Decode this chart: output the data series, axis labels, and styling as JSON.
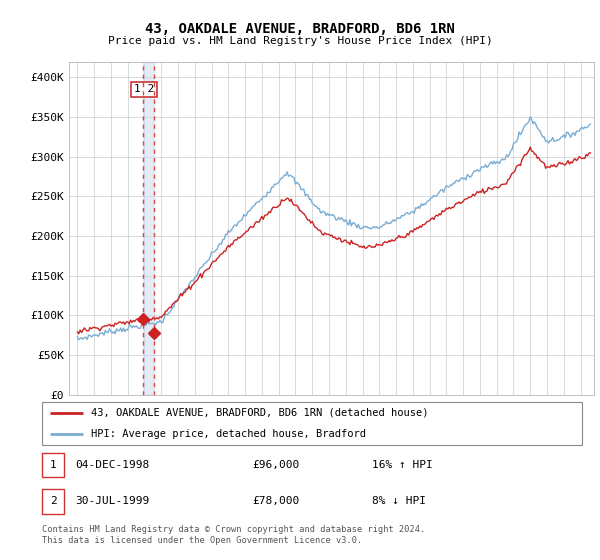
{
  "title": "43, OAKDALE AVENUE, BRADFORD, BD6 1RN",
  "subtitle": "Price paid vs. HM Land Registry's House Price Index (HPI)",
  "ylim": [
    0,
    420000
  ],
  "yticks": [
    0,
    50000,
    100000,
    150000,
    200000,
    250000,
    300000,
    350000,
    400000
  ],
  "ytick_labels": [
    "£0",
    "£50K",
    "£100K",
    "£150K",
    "£200K",
    "£250K",
    "£300K",
    "£350K",
    "£400K"
  ],
  "hpi_color": "#7aadd4",
  "price_color": "#cc2222",
  "dot_color": "#cc2222",
  "vline_color": "#dd4444",
  "shade_color": "#c8d8ee",
  "bg_color": "#ffffff",
  "grid_color": "#cccccc",
  "legend_label_price": "43, OAKDALE AVENUE, BRADFORD, BD6 1RN (detached house)",
  "legend_label_hpi": "HPI: Average price, detached house, Bradford",
  "transaction1_date": "04-DEC-1998",
  "transaction1_price": "£96,000",
  "transaction1_hpi": "16% ↑ HPI",
  "transaction2_date": "30-JUL-1999",
  "transaction2_price": "£78,000",
  "transaction2_hpi": "8% ↓ HPI",
  "footer": "Contains HM Land Registry data © Crown copyright and database right 2024.\nThis data is licensed under the Open Government Licence v3.0.",
  "transaction1_x": 1998.92,
  "transaction1_y": 96000,
  "transaction2_x": 1999.58,
  "transaction2_y": 78000,
  "vline1_x": 1998.92,
  "vline2_x": 1999.58,
  "xlim_left": 1994.5,
  "xlim_right": 2025.8,
  "xtick_years": [
    1995,
    1996,
    1997,
    1998,
    1999,
    2000,
    2001,
    2002,
    2003,
    2004,
    2005,
    2006,
    2007,
    2008,
    2009,
    2010,
    2011,
    2012,
    2013,
    2014,
    2015,
    2016,
    2017,
    2018,
    2019,
    2020,
    2021,
    2022,
    2023,
    2024,
    2025
  ]
}
